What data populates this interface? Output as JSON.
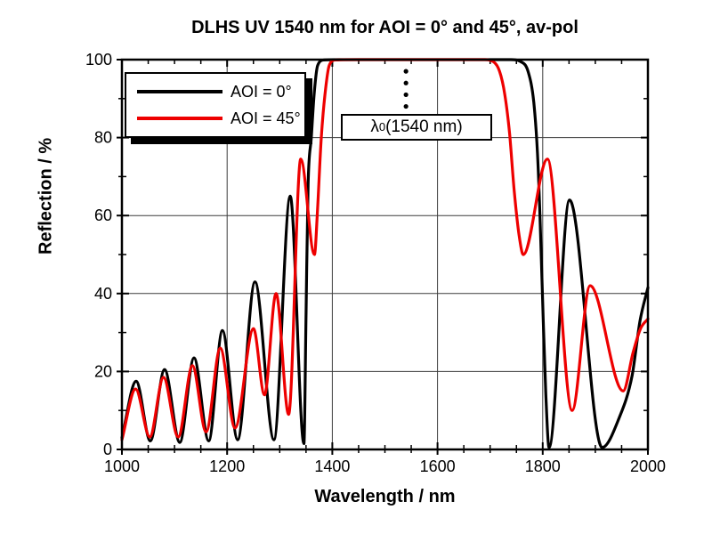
{
  "colors": {
    "curve_aoi0": "#000000",
    "curve_aoi45": "#ee0000",
    "grid": "#3c3c3c",
    "axis": "#000000",
    "background": "#ffffff"
  },
  "chart_data": {
    "type": "line",
    "title": "DLHS UV 1540 nm for AOI = 0° and 45°, av-pol",
    "xlabel": "Wavelength / nm",
    "ylabel": "Reflection / %",
    "xlim": [
      1000,
      2000
    ],
    "ylim": [
      0,
      100
    ],
    "x_ticks": [
      1000,
      1200,
      1400,
      1600,
      1800,
      2000
    ],
    "y_ticks": [
      0,
      20,
      40,
      60,
      80,
      100
    ],
    "x_minor_step": 50,
    "y_minor_step": 10,
    "grid": true,
    "legend_position": "top-left",
    "series": [
      {
        "name": "AOI = 0°",
        "color": "#000000",
        "points": [
          [
            1000,
            3
          ],
          [
            1027,
            17.5
          ],
          [
            1054,
            2.2
          ],
          [
            1081,
            20.5
          ],
          [
            1110,
            1.8
          ],
          [
            1137,
            23.5
          ],
          [
            1165,
            2.2
          ],
          [
            1191,
            30.5
          ],
          [
            1220,
            2.5
          ],
          [
            1253,
            43
          ],
          [
            1289,
            2.5
          ],
          [
            1320,
            65
          ],
          [
            1346,
            1.5
          ],
          [
            1350,
            35
          ],
          [
            1354,
            68
          ],
          [
            1360,
            80
          ],
          [
            1366,
            92
          ],
          [
            1372,
            98.5
          ],
          [
            1384,
            99.9
          ],
          [
            1420,
            100
          ],
          [
            1500,
            100
          ],
          [
            1600,
            100
          ],
          [
            1700,
            100
          ],
          [
            1740,
            100
          ],
          [
            1758,
            99.5
          ],
          [
            1772,
            97
          ],
          [
            1783,
            89
          ],
          [
            1790,
            76
          ],
          [
            1796,
            55
          ],
          [
            1801,
            33
          ],
          [
            1806,
            14
          ],
          [
            1812,
            0.5
          ],
          [
            1851,
            64
          ],
          [
            1913,
            0.5
          ],
          [
            1945,
            8
          ],
          [
            1970,
            19
          ],
          [
            1985,
            33
          ],
          [
            2000,
            41.5
          ]
        ]
      },
      {
        "name": "AOI = 45°",
        "color": "#ee0000",
        "points": [
          [
            1000,
            2.5
          ],
          [
            1026,
            15.5
          ],
          [
            1053,
            3.2
          ],
          [
            1079,
            18.5
          ],
          [
            1107,
            3.2
          ],
          [
            1134,
            21.5
          ],
          [
            1160,
            4.5
          ],
          [
            1187,
            26
          ],
          [
            1215,
            5.5
          ],
          [
            1250,
            31
          ],
          [
            1271,
            14
          ],
          [
            1293,
            40
          ],
          [
            1317,
            9
          ],
          [
            1340,
            74.5
          ],
          [
            1366,
            50
          ],
          [
            1372,
            62
          ],
          [
            1379,
            80
          ],
          [
            1386,
            91
          ],
          [
            1394,
            98.5
          ],
          [
            1406,
            99.9
          ],
          [
            1450,
            100
          ],
          [
            1550,
            100
          ],
          [
            1650,
            100
          ],
          [
            1690,
            100
          ],
          [
            1706,
            99.5
          ],
          [
            1718,
            97
          ],
          [
            1728,
            91
          ],
          [
            1737,
            81
          ],
          [
            1746,
            66
          ],
          [
            1755,
            55
          ],
          [
            1763,
            50
          ],
          [
            1809,
            74.5
          ],
          [
            1856,
            10
          ],
          [
            1890,
            42
          ],
          [
            1953,
            15
          ],
          [
            1972,
            25
          ],
          [
            1986,
            31
          ],
          [
            2000,
            33.5
          ]
        ]
      }
    ],
    "annotation": {
      "lambda": "λ",
      "sub": "0",
      "rest": " (1540 nm)",
      "marker_x": 1540,
      "marker_top_percent": 97,
      "marker_bottom_percent": 88,
      "marker_dots": 4
    }
  }
}
